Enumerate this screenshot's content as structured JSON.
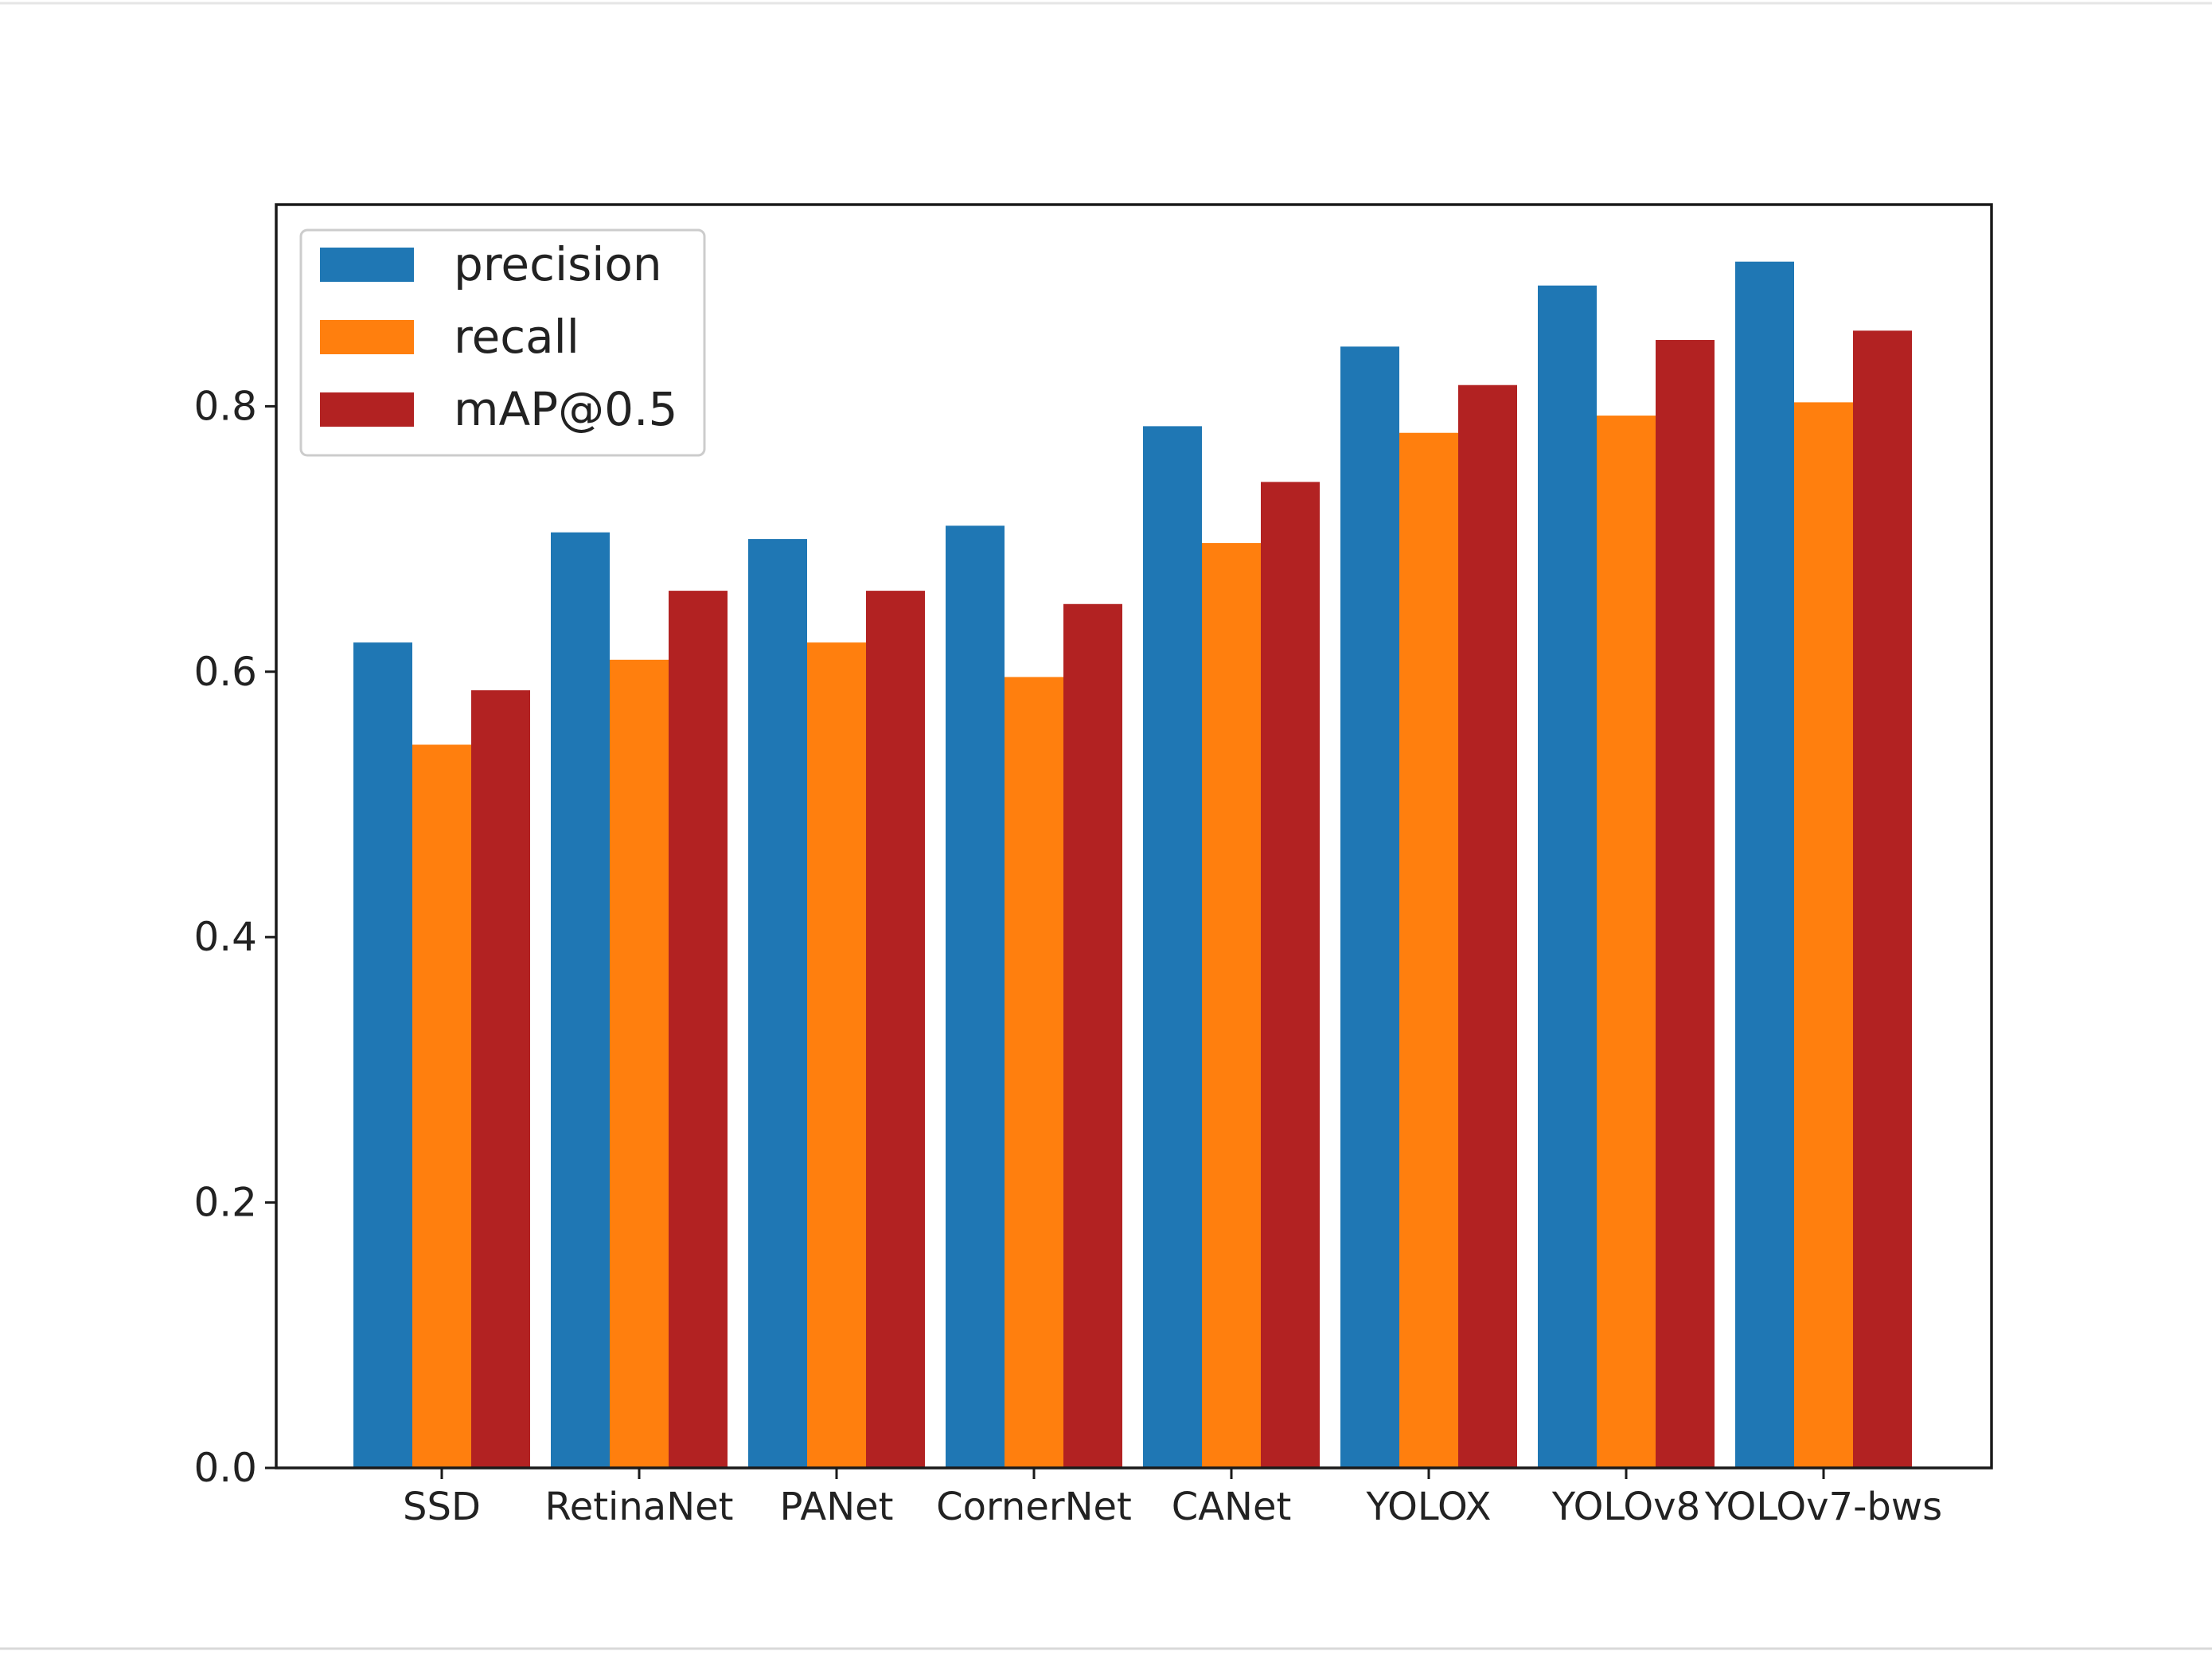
{
  "chart_data": {
    "type": "bar",
    "title": "",
    "xlabel": "",
    "ylabel": "",
    "categories": [
      "SSD",
      "RetinaNet",
      "PANet",
      "CornerNet",
      "CANet",
      "YOLOX",
      "YOLOv8",
      "YOLOv7-bws"
    ],
    "series": [
      {
        "name": "precision",
        "color": "#1f77b4",
        "values": [
          0.622,
          0.705,
          0.7,
          0.71,
          0.785,
          0.845,
          0.891,
          0.909
        ]
      },
      {
        "name": "recall",
        "color": "#ff7f0e",
        "values": [
          0.545,
          0.609,
          0.622,
          0.596,
          0.697,
          0.78,
          0.793,
          0.803
        ]
      },
      {
        "name": "mAP@0.5",
        "color": "#b22222",
        "values": [
          0.586,
          0.661,
          0.661,
          0.651,
          0.743,
          0.816,
          0.85,
          0.857
        ]
      }
    ],
    "yticks": [
      "0.0",
      "0.2",
      "0.4",
      "0.6",
      "0.8"
    ],
    "ylim": [
      0,
      0.952
    ],
    "grid": false,
    "legend_position": "top-left"
  }
}
